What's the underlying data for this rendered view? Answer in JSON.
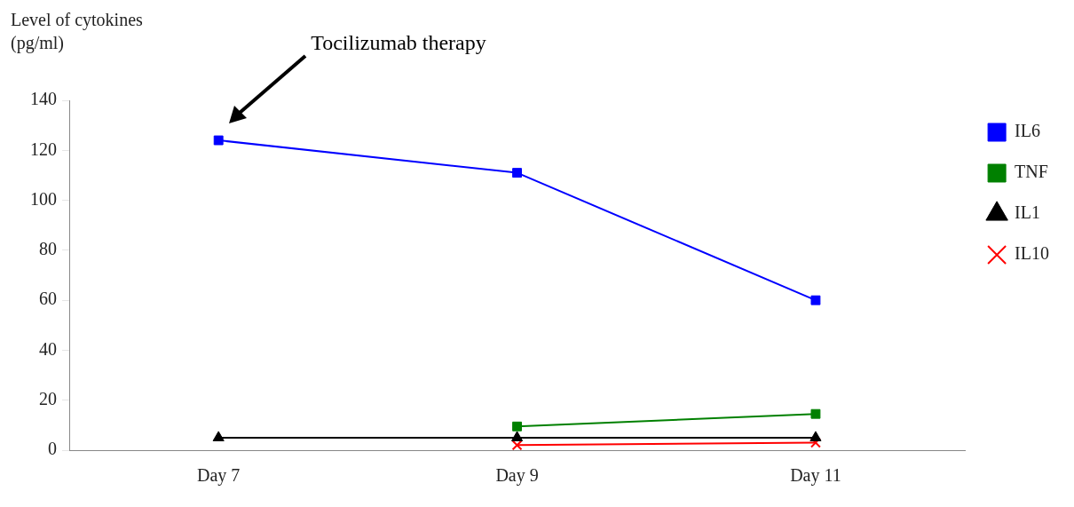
{
  "chart_data": {
    "type": "line",
    "ylabel": "Level of cytokines (pg/ml)",
    "categories": [
      "Day 7",
      "Day 9",
      "Day 11"
    ],
    "series": [
      {
        "name": "IL6",
        "color": "#0000ff",
        "marker": "square",
        "values": [
          124,
          111,
          60
        ]
      },
      {
        "name": "TNF",
        "color": "#008000",
        "marker": "square",
        "values": [
          null,
          9.5,
          14.5
        ]
      },
      {
        "name": "IL1",
        "color": "#000000",
        "marker": "triangle",
        "values": [
          5,
          5,
          5
        ]
      },
      {
        "name": "IL10",
        "color": "#ff0000",
        "marker": "cross",
        "values": [
          null,
          2,
          3
        ]
      }
    ],
    "ylim": [
      0,
      140
    ],
    "yticks": [
      0,
      20,
      40,
      60,
      80,
      100,
      120,
      140
    ],
    "grid": false,
    "legend": "right",
    "line_style": "solid",
    "annotations": [
      "Tocilizumab therapy"
    ]
  }
}
